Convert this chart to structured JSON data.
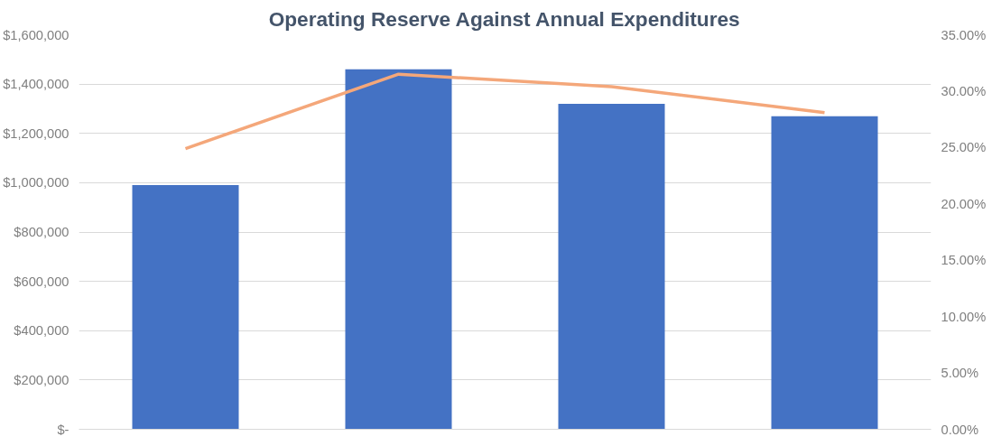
{
  "chart_data": {
    "type": "bar",
    "title": "Operating Reserve Against Annual Expenditures",
    "categories": [
      null,
      null,
      null,
      null
    ],
    "series": [
      {
        "color": "#4472c4",
        "values": [
          990000,
          1460000,
          1320000,
          1270000
        ]
      },
      {
        "type": "line",
        "axis": "y2",
        "color": "#f4a77a",
        "values": [
          24.9,
          31.5,
          30.4,
          28.1
        ]
      }
    ],
    "ylim": [
      0,
      1600000
    ],
    "yticks": [
      {
        "value": 0,
        "label": "$-"
      },
      {
        "value": 200000,
        "label": "$200,000"
      },
      {
        "value": 400000,
        "label": "$400,000"
      },
      {
        "value": 600000,
        "label": "$600,000"
      },
      {
        "value": 800000,
        "label": "$800,000"
      },
      {
        "value": 1000000,
        "label": "$1,000,000"
      },
      {
        "value": 1200000,
        "label": "$1,200,000"
      },
      {
        "value": 1400000,
        "label": "$1,400,000"
      },
      {
        "value": 1600000,
        "label": "$1,600,000"
      }
    ],
    "y2lim": [
      0,
      35
    ],
    "y2ticks": [
      {
        "value": 0,
        "label": "0.00%"
      },
      {
        "value": 5,
        "label": "5.00%"
      },
      {
        "value": 10,
        "label": "10.00%"
      },
      {
        "value": 15,
        "label": "15.00%"
      },
      {
        "value": 20,
        "label": "20.00%"
      },
      {
        "value": 25,
        "label": "25.00%"
      },
      {
        "value": 30,
        "label": "30.00%"
      },
      {
        "value": 35,
        "label": "35.00%"
      }
    ],
    "grid": "y",
    "marker": "none",
    "line_style": "solid"
  }
}
